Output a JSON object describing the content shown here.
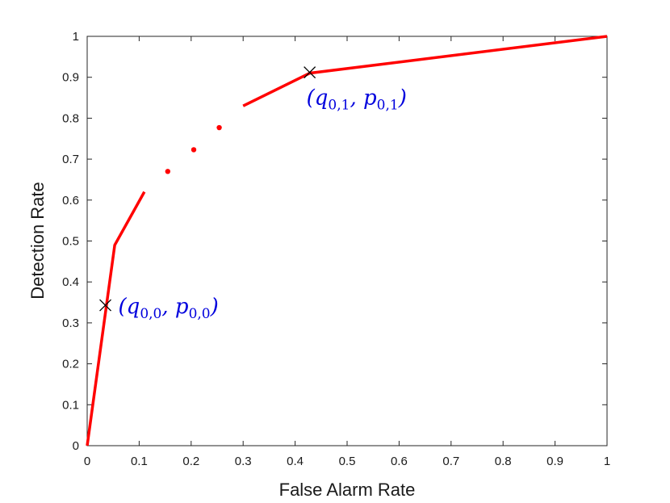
{
  "chart_data": {
    "type": "line",
    "title": "",
    "xlabel": "False Alarm Rate",
    "ylabel": "Detection Rate",
    "xlim": [
      0,
      1
    ],
    "ylim": [
      0,
      1
    ],
    "xticks": [
      0,
      0.1,
      0.2,
      0.3,
      0.4,
      0.5,
      0.6,
      0.7,
      0.8,
      0.9,
      1
    ],
    "yticks": [
      0,
      0.1,
      0.2,
      0.3,
      0.4,
      0.5,
      0.6,
      0.7,
      0.8,
      0.9,
      1
    ],
    "xtick_labels": [
      "0",
      "0.1",
      "0.2",
      "0.3",
      "0.4",
      "0.5",
      "0.6",
      "0.7",
      "0.8",
      "0.9",
      "1"
    ],
    "ytick_labels": [
      "0",
      "0.1",
      "0.2",
      "0.3",
      "0.4",
      "0.5",
      "0.6",
      "0.7",
      "0.8",
      "0.9",
      "1"
    ],
    "grid": false,
    "line_color": "#ff0000",
    "annotation_color": "#0000dd",
    "series": [
      {
        "segment": "lower",
        "x": [
          0,
          0.053,
          0.11
        ],
        "y": [
          0,
          0.49,
          0.62
        ]
      },
      {
        "segment": "upper",
        "x": [
          0.3,
          0.428,
          1
        ],
        "y": [
          0.83,
          0.91,
          1
        ]
      }
    ],
    "dots": [
      {
        "x": 0.155,
        "y": 0.67
      },
      {
        "x": 0.205,
        "y": 0.723
      },
      {
        "x": 0.254,
        "y": 0.777
      }
    ],
    "markers": [
      {
        "x": 0.035,
        "y": 0.343,
        "symbol": "x",
        "label_base": "(q",
        "label_sub1": "0,0",
        "label_mid": ", p",
        "label_sub2": "0,0",
        "label_end": ")"
      },
      {
        "x": 0.428,
        "y": 0.912,
        "symbol": "x",
        "label_base": "(q",
        "label_sub1": "0,1",
        "label_mid": ", p",
        "label_sub2": "0,1",
        "label_end": ")"
      }
    ]
  }
}
